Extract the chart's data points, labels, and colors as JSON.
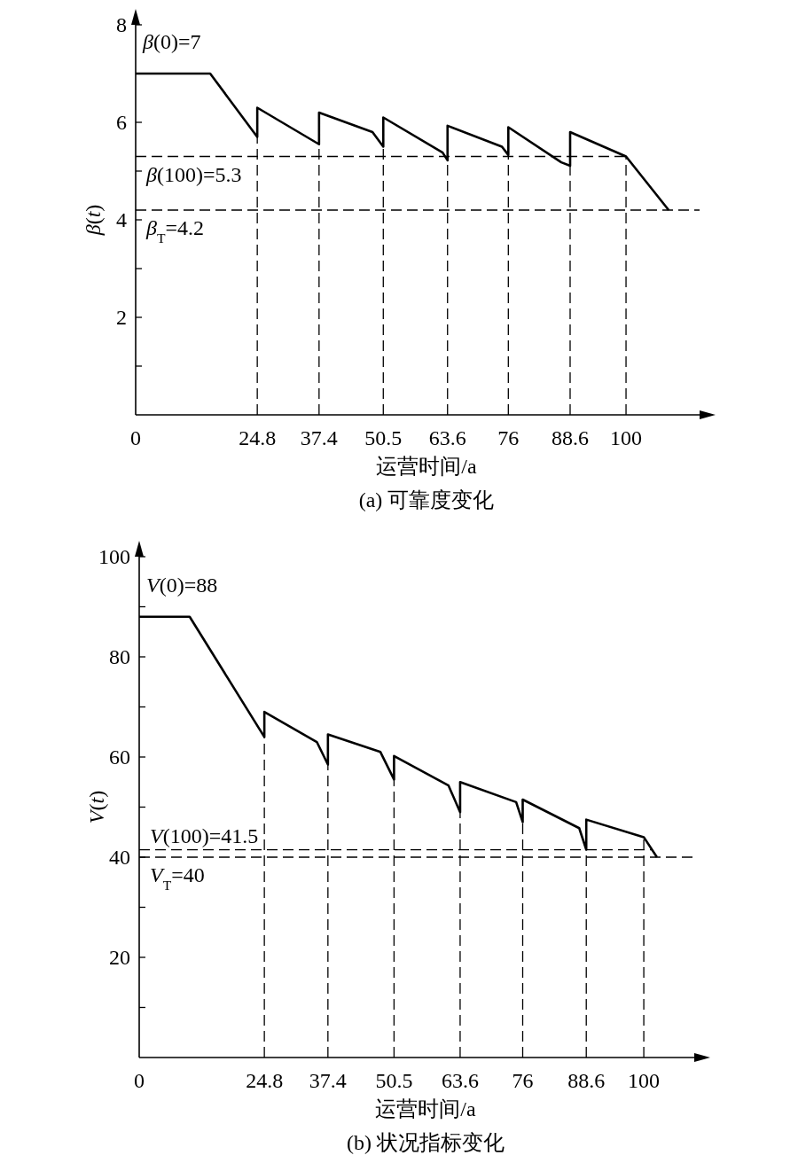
{
  "chart_data": [
    {
      "type": "line",
      "title": "(a) 可靠度变化",
      "xlabel": "运营时间/a",
      "ylabel": "*β*(*t*)",
      "color": "#000000",
      "line_style": "solid",
      "x": [
        0,
        15.2,
        24.8,
        24.8,
        37.4,
        37.4,
        48.3,
        50.5,
        50.5,
        62.6,
        63.6,
        63.6,
        74.7,
        76,
        76,
        86.8,
        88.6,
        88.6,
        100,
        108.7
      ],
      "values": [
        7,
        7,
        5.7,
        6.3,
        5.55,
        6.2,
        5.8,
        5.5,
        6.1,
        5.38,
        5.22,
        5.93,
        5.5,
        5.33,
        5.9,
        5.18,
        5.11,
        5.8,
        5.3,
        4.2
      ],
      "xlim": [
        0,
        115
      ],
      "ylim": [
        0,
        8
      ],
      "xticks": [
        0,
        24.8,
        37.4,
        50.5,
        63.6,
        76,
        88.6,
        100
      ],
      "yticks": [
        {
          "value": 1,
          "label": null
        },
        2,
        {
          "value": 3,
          "label": null
        },
        4,
        {
          "value": 5,
          "label": null
        },
        6,
        {
          "value": 7,
          "label": null
        },
        8
      ],
      "ref_lines": [
        {
          "axis": "y",
          "value": 5.3,
          "label": "*β*(100)=5.3",
          "color": "#000000",
          "line_style": "dashed"
        },
        {
          "axis": "y",
          "value": 4.2,
          "label": "*β*$_{T}$=4.2",
          "color": "#000000",
          "line_style": "dashed"
        },
        {
          "axis": "x",
          "value": 24.8,
          "color": "#000000",
          "line_style": "dashed"
        },
        {
          "axis": "x",
          "value": 37.4,
          "color": "#000000",
          "line_style": "dashed"
        },
        {
          "axis": "x",
          "value": 50.5,
          "color": "#000000",
          "line_style": "dashed"
        },
        {
          "axis": "x",
          "value": 63.6,
          "color": "#000000",
          "line_style": "dashed"
        },
        {
          "axis": "x",
          "value": 76,
          "color": "#000000",
          "line_style": "dashed"
        },
        {
          "axis": "x",
          "value": 88.6,
          "color": "#000000",
          "line_style": "dashed"
        },
        {
          "axis": "x",
          "value": 100,
          "color": "#000000",
          "line_style": "dashed"
        }
      ],
      "annotations": [
        {
          "text": "*β*(0)=7",
          "x": 0,
          "y": 7
        }
      ]
    },
    {
      "type": "line",
      "title": "(b) 状况指标变化",
      "xlabel": "运营时间/a",
      "ylabel": "*V*(*t*)",
      "color": "#000000",
      "line_style": "solid",
      "x": [
        0,
        10,
        24.8,
        24.8,
        35.2,
        37.4,
        37.4,
        47.8,
        50.5,
        50.5,
        61.3,
        63.6,
        63.6,
        74.7,
        76,
        76,
        87.2,
        88.6,
        88.6,
        100,
        102.6
      ],
      "values": [
        88,
        88,
        64,
        69,
        63,
        58.5,
        64.5,
        61,
        55.5,
        60.2,
        54.3,
        49,
        55,
        51,
        47,
        51.5,
        45.8,
        41.5,
        47.5,
        44,
        40
      ],
      "xlim": [
        0,
        110
      ],
      "ylim": [
        0,
        100
      ],
      "xticks": [
        0,
        24.8,
        37.4,
        50.5,
        63.6,
        76,
        88.6,
        100
      ],
      "yticks": [
        {
          "value": 10,
          "label": null
        },
        20,
        {
          "value": 30,
          "label": null
        },
        40,
        {
          "value": 50,
          "label": null
        },
        60,
        {
          "value": 70,
          "label": null
        },
        80,
        {
          "value": 90,
          "label": null
        },
        100
      ],
      "ref_lines": [
        {
          "axis": "y",
          "value": 41.5,
          "label": "*V*(100)=41.5",
          "color": "#000000",
          "line_style": "dashed"
        },
        {
          "axis": "y",
          "value": 40,
          "label": "*V*$_{T}$=40",
          "color": "#000000",
          "line_style": "dashed"
        },
        {
          "axis": "x",
          "value": 24.8,
          "color": "#000000",
          "line_style": "dashed"
        },
        {
          "axis": "x",
          "value": 37.4,
          "color": "#000000",
          "line_style": "dashed"
        },
        {
          "axis": "x",
          "value": 50.5,
          "color": "#000000",
          "line_style": "dashed"
        },
        {
          "axis": "x",
          "value": 63.6,
          "color": "#000000",
          "line_style": "dashed"
        },
        {
          "axis": "x",
          "value": 76,
          "color": "#000000",
          "line_style": "dashed"
        },
        {
          "axis": "x",
          "value": 88.6,
          "color": "#000000",
          "line_style": "dashed"
        },
        {
          "axis": "x",
          "value": 100,
          "color": "#000000",
          "line_style": "dashed"
        }
      ],
      "annotations": [
        {
          "text": "*V*(0)=88",
          "x": 0,
          "y": 88
        }
      ]
    }
  ]
}
